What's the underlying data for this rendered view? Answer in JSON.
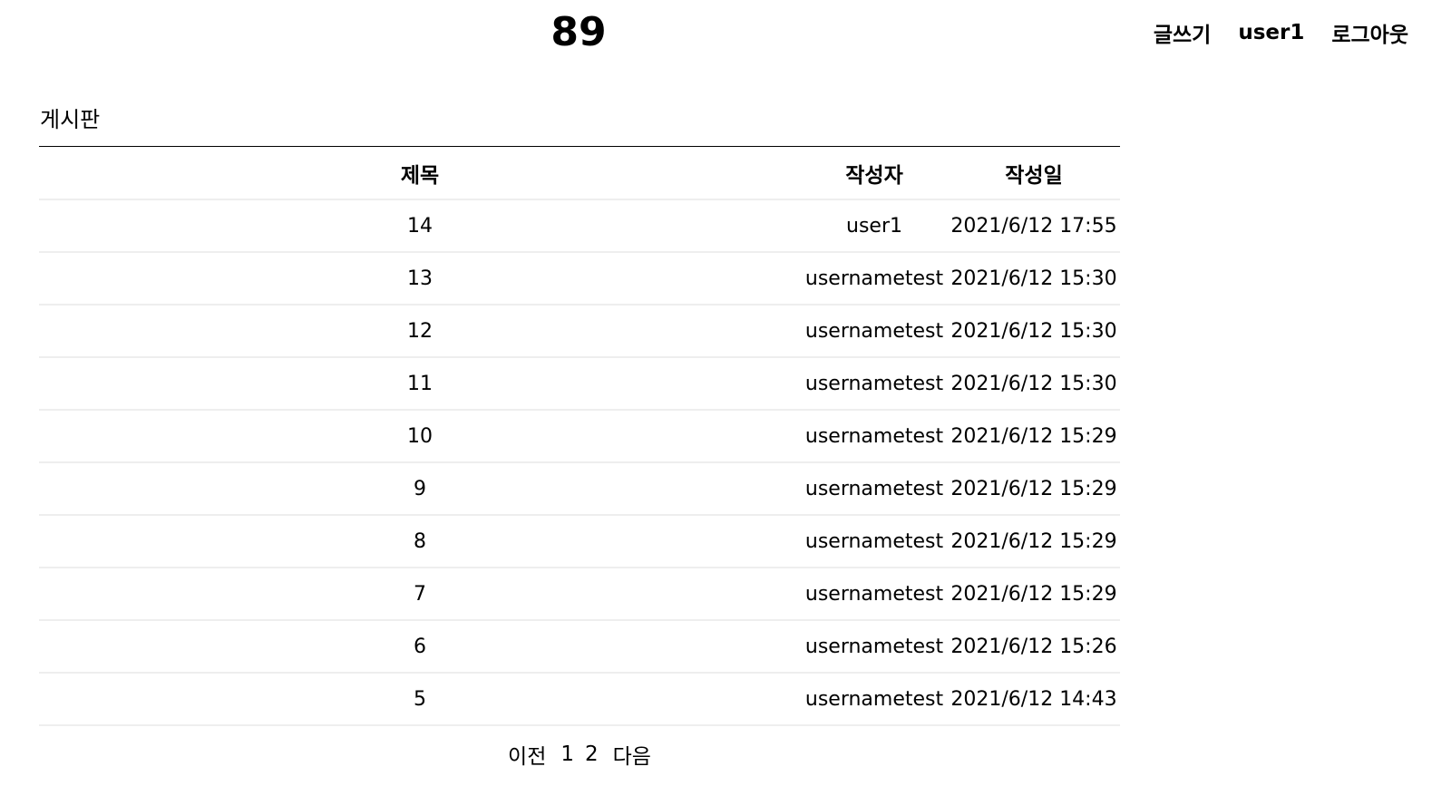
{
  "header": {
    "site_title": "89",
    "nav": {
      "write": "글쓰기",
      "username": "user1",
      "logout": "로그아웃"
    }
  },
  "board": {
    "title": "게시판",
    "columns": {
      "title": "제목",
      "author": "작성자",
      "date": "작성일"
    },
    "rows": [
      {
        "title": "14",
        "author": "user1",
        "date": "2021/6/12 17:55"
      },
      {
        "title": "13",
        "author": "usernametest",
        "date": "2021/6/12 15:30"
      },
      {
        "title": "12",
        "author": "usernametest",
        "date": "2021/6/12 15:30"
      },
      {
        "title": "11",
        "author": "usernametest",
        "date": "2021/6/12 15:30"
      },
      {
        "title": "10",
        "author": "usernametest",
        "date": "2021/6/12 15:29"
      },
      {
        "title": "9",
        "author": "usernametest",
        "date": "2021/6/12 15:29"
      },
      {
        "title": "8",
        "author": "usernametest",
        "date": "2021/6/12 15:29"
      },
      {
        "title": "7",
        "author": "usernametest",
        "date": "2021/6/12 15:29"
      },
      {
        "title": "6",
        "author": "usernametest",
        "date": "2021/6/12 15:26"
      },
      {
        "title": "5",
        "author": "usernametest",
        "date": "2021/6/12 14:43"
      }
    ]
  },
  "pagination": {
    "prev": "이전",
    "pages": [
      "1",
      "2"
    ],
    "next": "다음"
  }
}
